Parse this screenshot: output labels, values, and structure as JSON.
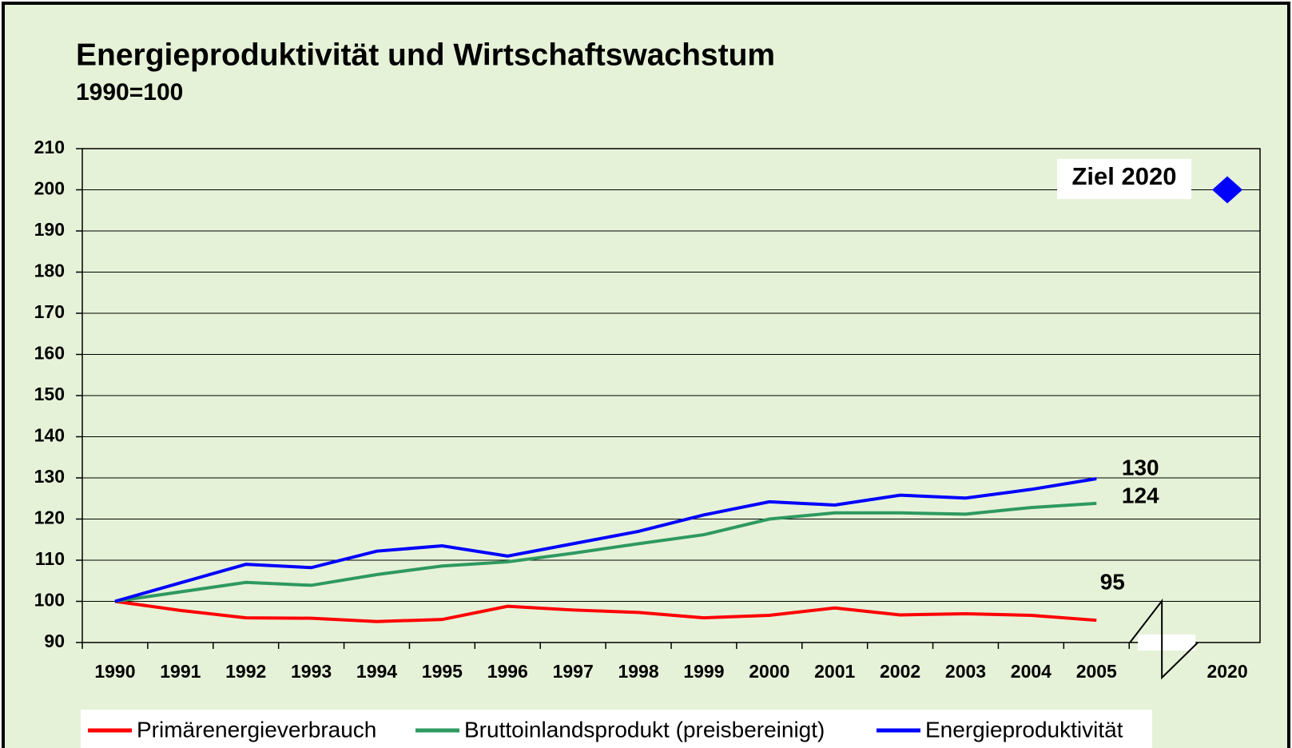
{
  "chart_data": {
    "type": "line",
    "title": "Energieproduktivität und Wirtschaftswachstum",
    "subtitle": "1990=100",
    "categories": [
      "1990",
      "1991",
      "1992",
      "1993",
      "1994",
      "1995",
      "1996",
      "1997",
      "1998",
      "1999",
      "2000",
      "2001",
      "2002",
      "2003",
      "2004",
      "2005",
      null,
      "2020"
    ],
    "series": [
      {
        "name": "Primärenergieverbrauch",
        "color": "#ff0000",
        "values": [
          100,
          97.8,
          96,
          95.9,
          95.1,
          95.6,
          98.8,
          97.9,
          97.3,
          96,
          96.6,
          98.4,
          96.7,
          97,
          96.6,
          95.4,
          null,
          null
        ],
        "value_labels": [
          null,
          null,
          null,
          null,
          null,
          null,
          null,
          null,
          null,
          null,
          null,
          null,
          null,
          null,
          null,
          "95",
          null,
          null
        ]
      },
      {
        "name": "Bruttoinlandsprodukt (preisbereinigt)",
        "color": "#2e9960",
        "values": [
          100,
          102.3,
          104.6,
          103.9,
          106.5,
          108.6,
          109.6,
          111.7,
          114,
          116.2,
          120,
          121.5,
          121.5,
          121.2,
          122.8,
          123.8,
          null,
          null
        ],
        "value_labels": [
          null,
          null,
          null,
          null,
          null,
          null,
          null,
          null,
          null,
          null,
          null,
          null,
          null,
          null,
          null,
          "124",
          null,
          null
        ]
      },
      {
        "name": "Energieproduktivität",
        "color": "#0000ff",
        "values": [
          100,
          104.5,
          109,
          108.2,
          112.2,
          113.5,
          111,
          114,
          117,
          121,
          124.2,
          123.4,
          125.8,
          125.1,
          127.2,
          129.8,
          null,
          null
        ],
        "value_labels": [
          null,
          null,
          null,
          null,
          null,
          null,
          null,
          null,
          null,
          null,
          null,
          null,
          null,
          null,
          null,
          "130",
          null,
          null
        ]
      }
    ],
    "target": {
      "label": "Ziel 2020",
      "value": 200,
      "color": "#0000ff"
    },
    "ylim": [
      90,
      210
    ],
    "yticks": [
      90,
      100,
      110,
      120,
      130,
      140,
      150,
      160,
      170,
      180,
      190,
      200,
      210
    ],
    "grid": true
  }
}
